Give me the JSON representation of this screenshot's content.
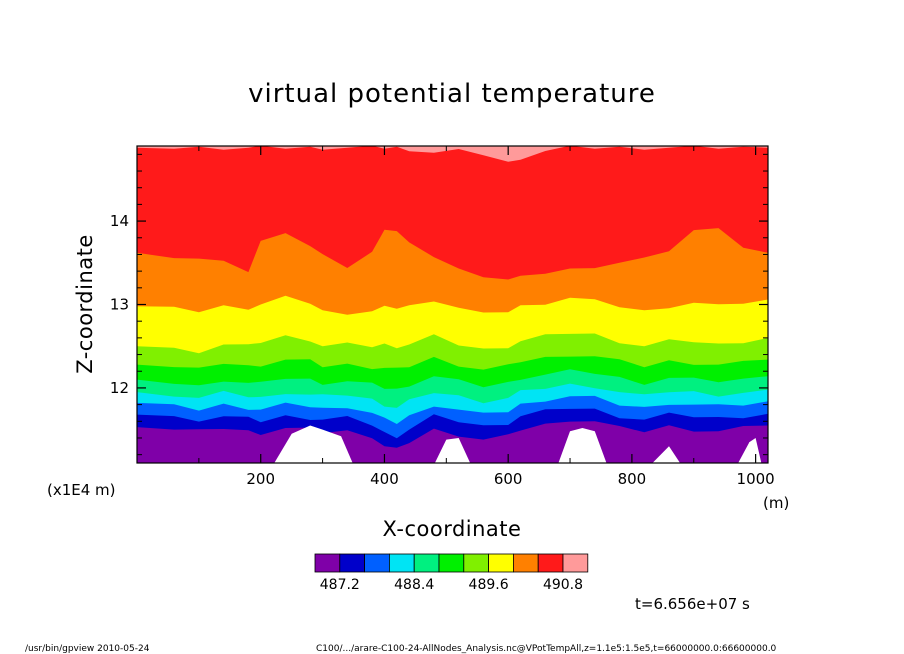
{
  "footer": {
    "left": "/usr/bin/gpview   2010-05-24",
    "right": "C100/.../arare-C100-24-AllNodes_Analysis.nc@VPotTempAll,z=1.1e5:1.5e5,t=66000000.0:66600000.0"
  },
  "chart_data": {
    "type": "heatmap",
    "title": "virtual potential temperature",
    "xlabel": "X-coordinate",
    "ylabel": "Z-coordinate",
    "x_unit": "(m)",
    "y_unit": "(x1E4 m)",
    "time_label": "t=6.656e+07 s",
    "xlim": [
      0,
      1020
    ],
    "ylim": [
      11.1,
      14.9
    ],
    "x_ticks": [
      200,
      400,
      600,
      800,
      1000
    ],
    "x_tick_labels": [
      "200",
      "400",
      "600",
      "800",
      "1000"
    ],
    "y_ticks": [
      12,
      13,
      14
    ],
    "y_tick_labels": [
      "12",
      "13",
      "14"
    ],
    "contour_levels": [
      486.9,
      487.2,
      487.5,
      487.8,
      488.1,
      488.4,
      488.7,
      489.0,
      489.3,
      489.6,
      489.9,
      490.2,
      490.5,
      490.8,
      491.1
    ],
    "colorbar": {
      "colors": [
        "#7f00a8",
        "#0000ca",
        "#0060ff",
        "#00e4f4",
        "#00f080",
        "#00f000",
        "#80f000",
        "#ffff00",
        "#ff8000",
        "#ff1a1a",
        "#ff9a9a"
      ],
      "labels": [
        "487.2",
        "488.4",
        "489.6",
        "490.8"
      ]
    },
    "boundaries": {
      "x": [
        0,
        60,
        100,
        140,
        180,
        200,
        240,
        280,
        300,
        340,
        380,
        400,
        420,
        440,
        480,
        520,
        560,
        600,
        620,
        660,
        700,
        740,
        780,
        820,
        860,
        900,
        940,
        980,
        1020
      ],
      "levels": [
        {
          "color": "#0000ca",
          "z": [
            11.53,
            11.5,
            11.48,
            11.52,
            11.48,
            11.46,
            11.52,
            11.5,
            11.47,
            11.48,
            11.42,
            11.3,
            11.26,
            11.35,
            11.5,
            11.44,
            11.38,
            11.42,
            11.5,
            11.56,
            11.62,
            11.6,
            11.52,
            11.48,
            11.54,
            11.5,
            11.48,
            11.52,
            11.55
          ]
        },
        {
          "color": "#0060ff",
          "z": [
            11.68,
            11.65,
            11.62,
            11.66,
            11.63,
            11.6,
            11.66,
            11.64,
            11.62,
            11.64,
            11.56,
            11.46,
            11.42,
            11.5,
            11.66,
            11.6,
            11.54,
            11.58,
            11.66,
            11.72,
            11.76,
            11.74,
            11.66,
            11.62,
            11.68,
            11.66,
            11.64,
            11.66,
            11.69
          ]
        },
        {
          "color": "#00e4f4",
          "z": [
            11.82,
            11.78,
            11.74,
            11.8,
            11.76,
            11.74,
            11.8,
            11.78,
            11.75,
            11.78,
            11.7,
            11.62,
            11.58,
            11.66,
            11.8,
            11.74,
            11.68,
            11.72,
            11.8,
            11.86,
            11.9,
            11.88,
            11.8,
            11.76,
            11.82,
            11.8,
            11.78,
            11.8,
            11.84
          ]
        },
        {
          "color": "#00f080",
          "z": [
            11.95,
            11.92,
            11.88,
            11.94,
            11.9,
            11.88,
            11.95,
            11.92,
            11.9,
            11.92,
            11.86,
            11.8,
            11.76,
            11.84,
            11.95,
            11.9,
            11.84,
            11.88,
            11.95,
            12.0,
            12.04,
            12.02,
            11.95,
            11.9,
            11.96,
            11.95,
            11.92,
            11.94,
            11.98
          ]
        },
        {
          "color": "#00f000",
          "z": [
            12.1,
            12.06,
            12.02,
            12.1,
            12.06,
            12.05,
            12.12,
            12.1,
            12.06,
            12.08,
            12.04,
            12.0,
            11.98,
            12.04,
            12.14,
            12.08,
            12.02,
            12.06,
            12.12,
            12.16,
            12.2,
            12.18,
            12.12,
            12.06,
            12.12,
            12.1,
            12.08,
            12.1,
            12.14
          ]
        },
        {
          "color": "#80f000",
          "z": [
            12.28,
            12.25,
            12.22,
            12.3,
            12.26,
            12.28,
            12.34,
            12.32,
            12.26,
            12.28,
            12.25,
            12.24,
            12.22,
            12.26,
            12.36,
            12.28,
            12.22,
            12.26,
            12.32,
            12.36,
            12.4,
            12.38,
            12.32,
            12.26,
            12.32,
            12.3,
            12.28,
            12.3,
            12.34
          ]
        },
        {
          "color": "#ffff00",
          "z": [
            12.5,
            12.47,
            12.44,
            12.52,
            12.5,
            12.55,
            12.62,
            12.58,
            12.5,
            12.52,
            12.5,
            12.52,
            12.5,
            12.52,
            12.62,
            12.52,
            12.46,
            12.5,
            12.56,
            12.62,
            12.66,
            12.64,
            12.56,
            12.5,
            12.56,
            12.56,
            12.52,
            12.56,
            12.6
          ]
        },
        {
          "color": "#ff8000",
          "z": [
            12.98,
            12.95,
            12.92,
            12.98,
            12.96,
            13.0,
            13.08,
            13.02,
            12.92,
            12.9,
            12.92,
            12.96,
            12.96,
            12.98,
            13.06,
            12.96,
            12.88,
            12.92,
            12.98,
            13.02,
            13.08,
            13.04,
            12.98,
            12.92,
            12.98,
            13.02,
            12.98,
            13.02,
            13.06
          ]
        },
        {
          "color": "#ff1a1a",
          "z": [
            13.62,
            13.58,
            13.55,
            13.5,
            13.4,
            13.75,
            13.88,
            13.7,
            13.58,
            13.45,
            13.62,
            13.92,
            13.88,
            13.72,
            13.58,
            13.42,
            13.35,
            13.3,
            13.32,
            13.38,
            13.42,
            13.46,
            13.5,
            13.54,
            13.65,
            13.88,
            13.94,
            13.68,
            13.62
          ]
        },
        {
          "color": "#ff9a9a",
          "z": [
            14.88,
            14.88,
            14.88,
            14.88,
            14.88,
            14.88,
            14.88,
            14.88,
            14.88,
            14.88,
            14.88,
            14.88,
            14.88,
            14.86,
            14.82,
            14.84,
            14.8,
            14.7,
            14.76,
            14.84,
            14.88,
            14.88,
            14.88,
            14.88,
            14.88,
            14.88,
            14.88,
            14.88,
            14.88
          ]
        }
      ],
      "white_holes": [
        {
          "x": [
            220,
            250,
            280,
            300,
            330,
            350
          ],
          "z": [
            11.1,
            11.45,
            11.55,
            11.5,
            11.42,
            11.1
          ]
        },
        {
          "x": [
            480,
            500,
            520,
            540
          ],
          "z": [
            11.1,
            11.38,
            11.4,
            11.1
          ]
        },
        {
          "x": [
            680,
            700,
            720,
            740,
            760
          ],
          "z": [
            11.1,
            11.48,
            11.52,
            11.48,
            11.1
          ]
        },
        {
          "x": [
            830,
            860,
            880
          ],
          "z": [
            11.1,
            11.3,
            11.1
          ]
        },
        {
          "x": [
            970,
            990,
            1000,
            1010
          ],
          "z": [
            11.1,
            11.35,
            11.4,
            11.1
          ]
        }
      ]
    }
  }
}
